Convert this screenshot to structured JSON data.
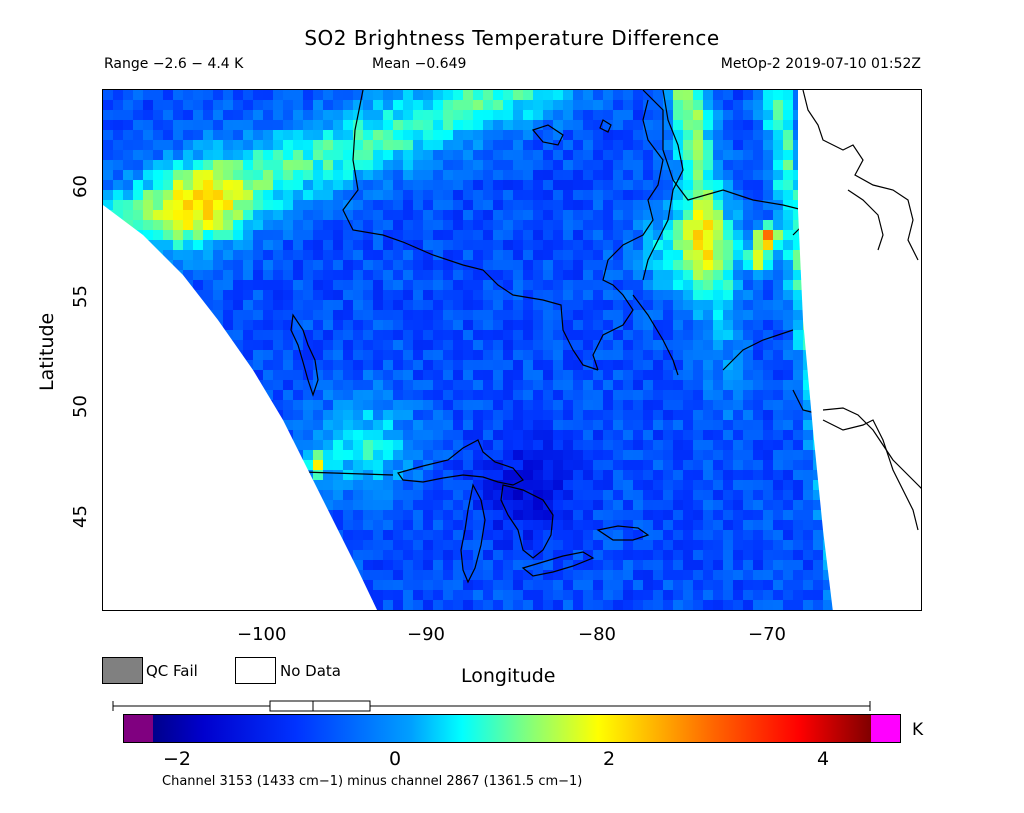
{
  "title": "SO2 Brightness Temperature Difference",
  "range_text": "Range −2.6 − 4.4 K",
  "mean_text": "Mean −0.649",
  "satellite_text": "MetOp-2 2019-07-10 01:52Z",
  "axes": {
    "xlabel": "Longitude",
    "ylabel": "Latitude",
    "x_ticks": [
      "−100",
      "−90",
      "−80",
      "−70"
    ],
    "y_ticks": [
      "60",
      "55",
      "50",
      "45"
    ],
    "lon_range": [
      -110,
      -60
    ],
    "lat_range": [
      40.5,
      64.2
    ]
  },
  "legend": {
    "qc_fail": "QC Fail",
    "no_data": "No Data",
    "qc_fail_color": "#808080",
    "no_data_color": "#ffffff"
  },
  "colorbar": {
    "min": -2.6,
    "max": 4.4,
    "unit": "K",
    "tick_labels": [
      "−2",
      "0",
      "2",
      "4"
    ],
    "tick_values": [
      -2,
      0,
      2,
      4
    ],
    "under_color": "#800080",
    "over_color": "#ff00ff",
    "boxplot": {
      "min": -2.6,
      "q1": -1.05,
      "median": -0.75,
      "q3": -0.42,
      "max": 4.4
    }
  },
  "footnote": "Channel 3153 (1433 cm−1) minus channel 2867 (1361.5 cm−1)",
  "chart_data": {
    "type": "heatmap",
    "title": "SO2 Brightness Temperature Difference",
    "xlabel": "Longitude",
    "ylabel": "Latitude",
    "xlim": [
      -110,
      -60
    ],
    "ylim": [
      40.5,
      64.2
    ],
    "value_range": [
      -2.6,
      4.4
    ],
    "mean": -0.649,
    "unit": "K",
    "features": [
      {
        "label": "enhanced band NW",
        "lon": -104,
        "lat": 59,
        "value": 1.5
      },
      {
        "label": "enhanced swath east",
        "lon": -74,
        "lat": 57,
        "value": 1.8
      },
      {
        "label": "hotspot",
        "lon": -69.5,
        "lat": 57.5,
        "value": 4.4
      },
      {
        "label": "hotspot",
        "lon": -70,
        "lat": 56.5,
        "value": 3.0
      },
      {
        "label": "hotspot",
        "lon": -97,
        "lat": 47.2,
        "value": 3.0
      },
      {
        "label": "enhanced region",
        "lon": -94,
        "lat": 48,
        "value": 1.3
      },
      {
        "label": "low region Great Lakes",
        "lon": -84,
        "lat": 46,
        "value": -2.0
      }
    ]
  }
}
